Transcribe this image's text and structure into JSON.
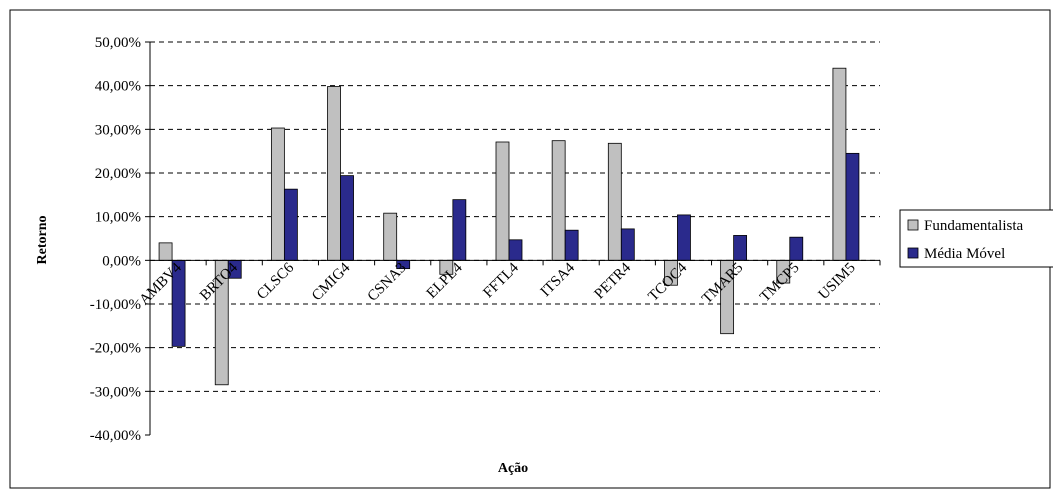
{
  "chart_data": {
    "type": "bar",
    "title": "",
    "xlabel": "Ação",
    "ylabel": "Retorno",
    "ylim": [
      -40,
      50
    ],
    "ytick_step": 10,
    "ytick_labels": [
      "50,00%",
      "40,00%",
      "30,00%",
      "20,00%",
      "10,00%",
      "0,00%",
      "-10,00%",
      "-20,00%",
      "-30,00%",
      "-40,00%"
    ],
    "grid": "horizontal dashed",
    "legend_position": "right",
    "categories": [
      "AMBV4",
      "BRTO4",
      "CLSC6",
      "CMIG4",
      "CSNA3",
      "ELPL4",
      "FFTL4",
      "ITSA4",
      "PETR4",
      "TCOC4",
      "TMAR5",
      "TMCP5",
      "USIM5"
    ],
    "series": [
      {
        "name": "Fundamentalista",
        "color": "#c0c0c0",
        "values": [
          4.0,
          -28.5,
          30.3,
          39.8,
          10.8,
          -3.2,
          27.1,
          27.4,
          26.8,
          -5.7,
          -16.8,
          -5.2,
          44.0
        ]
      },
      {
        "name": "Média Móvel",
        "color": "#2a2a8c",
        "values": [
          -19.7,
          -4.1,
          16.3,
          19.4,
          -1.9,
          13.9,
          4.7,
          6.9,
          7.2,
          10.4,
          5.7,
          5.3,
          24.5
        ]
      }
    ]
  }
}
